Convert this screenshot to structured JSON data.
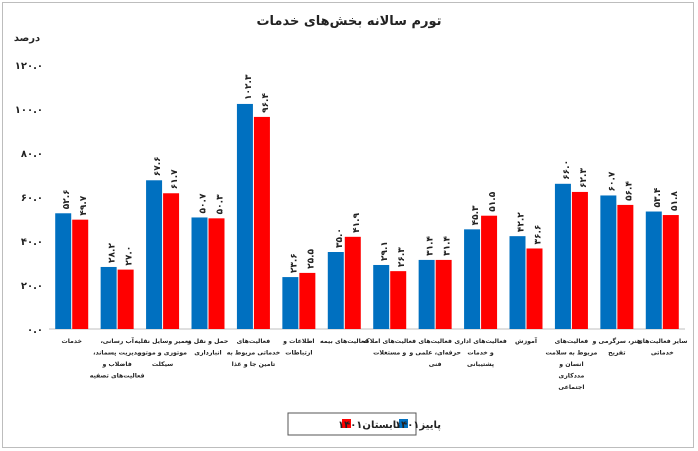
{
  "chart_data": {
    "type": "bar",
    "title": "تورم سالانه بخش‌های خدمات",
    "ylabel": "درصد",
    "ylim": [
      0,
      120
    ],
    "yticks": [
      0,
      20,
      40,
      60,
      80,
      100,
      120
    ],
    "ytick_labels": [
      "۰.۰",
      "۲۰.۰",
      "۴۰.۰",
      "۶۰.۰",
      "۸۰.۰",
      "۱۰۰.۰",
      "۱۲۰.۰"
    ],
    "grid": false,
    "legend_position": "bottom",
    "categories": [
      [
        "خدمات"
      ],
      [
        "آب رسانی،",
        "مدیریت پسماند،",
        "فاضلاب و",
        "فعالیت‌های تصفیه"
      ],
      [
        "تعمیر وسایل نقلیه",
        "موتوری و موتور",
        "سیکلت"
      ],
      [
        "حمل و نقل و",
        "انبارداری"
      ],
      [
        "فعالیت‌های",
        "خدماتی مربوط به",
        "تامین جا و غذا"
      ],
      [
        "اطلاعات و",
        "ارتباطات"
      ],
      [
        "فعالیت‌های بیمه"
      ],
      [
        "فعالیت‌های املاک",
        "و مستغلات"
      ],
      [
        "فعالیت‌های",
        "حرفه‌ای، علمی و",
        "فنی"
      ],
      [
        "فعالیت‌های اداری",
        "و خدمات",
        "پشتیبانی"
      ],
      [
        "آموزش"
      ],
      [
        "فعالیت‌های",
        "مربوط به سلامت",
        "انسان و",
        "مددکاری",
        "اجتماعی"
      ],
      [
        "هنر، سرگرمی و",
        "تفریح"
      ],
      [
        "سایر فعالیت‌های",
        "خدماتی"
      ]
    ],
    "series": [
      {
        "name": "پاییز۱۴۰۱",
        "color": "#0070C0",
        "values": [
          52.6,
          28.2,
          67.6,
          50.7,
          102.3,
          23.6,
          35.0,
          29.1,
          31.4,
          45.3,
          42.2,
          66.0,
          60.7,
          53.4
        ],
        "labels": [
          "۵۲.۶",
          "۲۸.۲",
          "۶۷.۶",
          "۵۰.۷",
          "۱۰۲.۳",
          "۲۳.۶",
          "۳۵.۰",
          "۲۹.۱",
          "۳۱.۴",
          "۴۵.۳",
          "۴۲.۲",
          "۶۶.۰",
          "۶۰.۷",
          "۵۳.۴"
        ]
      },
      {
        "name": "تابستان۱۴۰۱",
        "color": "#FF0000",
        "values": [
          49.7,
          27.0,
          61.7,
          50.3,
          96.4,
          25.5,
          41.9,
          26.3,
          31.4,
          51.5,
          36.6,
          62.3,
          56.4,
          51.8
        ],
        "labels": [
          "۴۹.۷",
          "۲۷.۰",
          "۶۱.۷",
          "۵۰.۳",
          "۹۶.۴",
          "۲۵.۵",
          "۴۱.۹",
          "۲۶.۳",
          "۳۱.۴",
          "۵۱.۵",
          "۳۶.۶",
          "۶۲.۳",
          "۵۶.۴",
          "۵۱.۸"
        ]
      }
    ]
  }
}
